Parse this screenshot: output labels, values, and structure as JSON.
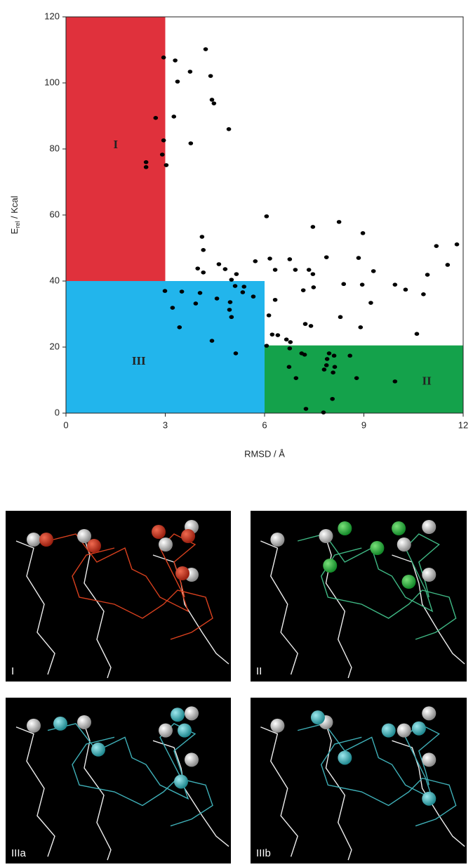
{
  "chart_data": {
    "type": "scatter",
    "xlabel": "RMSD / Å",
    "ylabel_parts": [
      "E",
      "rel",
      " / Kcal"
    ],
    "xlim": [
      0,
      12
    ],
    "ylim": [
      0,
      120
    ],
    "xticks": [
      0,
      3,
      6,
      9,
      12
    ],
    "yticks": [
      0,
      20,
      40,
      60,
      80,
      100,
      120
    ],
    "color": "#000000",
    "regions": [
      {
        "label": "I",
        "color": "#e0313c",
        "x": [
          0,
          3
        ],
        "y": [
          40,
          120
        ],
        "label_at": [
          1.5,
          81
        ]
      },
      {
        "label": "III",
        "color": "#22b5ec",
        "x": [
          0,
          6
        ],
        "y": [
          0,
          40
        ],
        "label_at": [
          2.2,
          15.5
        ]
      },
      {
        "label": "II",
        "color": "#14a24b",
        "x": [
          6,
          12
        ],
        "y": [
          0,
          20.5
        ],
        "label_at": [
          10.9,
          9.5
        ]
      }
    ],
    "x": [
      2.95,
      3.3,
      4.22,
      3.75,
      4.37,
      3.37,
      4.41,
      4.47,
      3.26,
      2.71,
      4.92,
      2.95,
      3.77,
      2.91,
      2.42,
      3.03,
      2.42,
      6.06,
      8.25,
      7.46,
      8.97,
      4.11,
      11.19,
      11.81,
      4.15,
      7.87,
      6.16,
      6.76,
      5.72,
      8.84,
      11.53,
      4.62,
      4.81,
      3.98,
      4.15,
      6.32,
      6.93,
      7.34,
      9.29,
      7.46,
      5.15,
      10.92,
      8.39,
      8.95,
      5.0,
      9.94,
      10.26,
      7.48,
      7.17,
      10.8,
      5.38,
      2.99,
      3.5,
      4.05,
      5.11,
      5.34,
      5.66,
      4.56,
      6.32,
      3.92,
      4.96,
      9.21,
      3.22,
      4.94,
      5.0,
      6.13,
      8.29,
      7.23,
      7.4,
      3.43,
      8.9,
      10.6,
      6.23,
      6.4,
      6.66,
      6.78,
      4.41,
      6.06,
      6.76,
      7.95,
      7.12,
      5.13,
      8.1,
      8.58,
      7.89,
      7.21,
      7.87,
      8.12,
      6.74,
      7.8,
      8.07,
      6.95,
      8.78,
      9.94,
      8.05,
      7.25,
      7.78
    ],
    "values": [
      107.7,
      106.8,
      110.2,
      103.4,
      102.1,
      100.4,
      94.9,
      93.8,
      89.8,
      89.4,
      86,
      82.6,
      81.7,
      78.3,
      76,
      75.1,
      74.5,
      59.6,
      57.9,
      56.4,
      54.5,
      53.4,
      50.6,
      51.1,
      49.4,
      47.2,
      46.8,
      46.6,
      46,
      47,
      44.9,
      45.1,
      43.6,
      43.8,
      42.6,
      43.4,
      43.4,
      43.4,
      43,
      42.1,
      42.1,
      41.9,
      39.1,
      38.9,
      40.4,
      38.9,
      37.4,
      38.1,
      37.2,
      36,
      38.3,
      37,
      36.8,
      36.4,
      38.5,
      36.6,
      35.3,
      34.7,
      34.3,
      33.2,
      33.6,
      33.4,
      31.9,
      31.3,
      29.1,
      29.6,
      29.1,
      27,
      26.4,
      26,
      26,
      24,
      23.8,
      23.6,
      22.3,
      21.5,
      21.9,
      20.4,
      19.6,
      18.1,
      18.1,
      18.1,
      17.4,
      17.4,
      16.4,
      17.7,
      14.5,
      14,
      14,
      13.2,
      12.3,
      10.6,
      10.6,
      9.6,
      4.3,
      1.3,
      0.2
    ]
  },
  "panels": [
    {
      "label": "I"
    },
    {
      "label": "II"
    },
    {
      "label": "IIIa"
    },
    {
      "label": "IIIb"
    }
  ]
}
